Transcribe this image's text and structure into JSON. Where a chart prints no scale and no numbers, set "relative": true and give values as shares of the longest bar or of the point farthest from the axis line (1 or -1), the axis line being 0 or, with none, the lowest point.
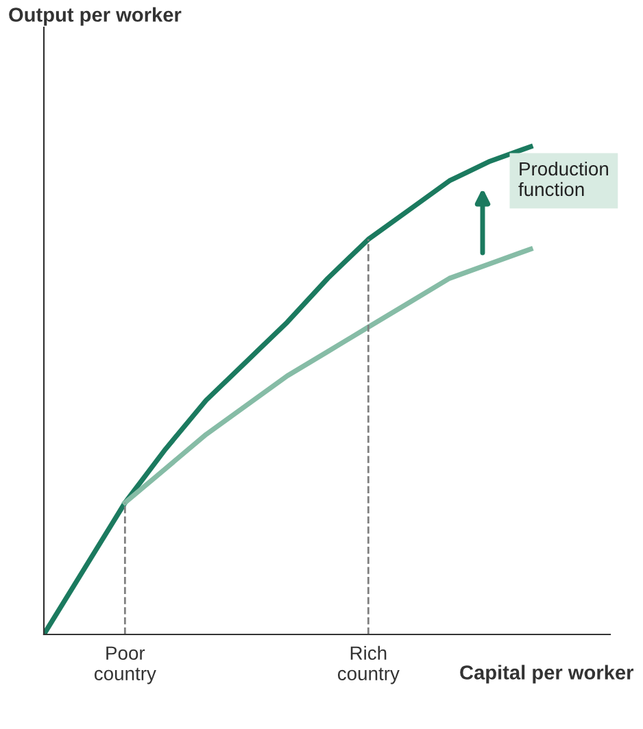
{
  "chart_data": {
    "type": "line",
    "relative": true,
    "xlabel": "Capital per worker",
    "categories": [
      null,
      null,
      "Poor\ncountry",
      null,
      null,
      null,
      null,
      null,
      "Rich\ncountry",
      null,
      null,
      null,
      null
    ],
    "tick_labels": "x",
    "grid": false,
    "marker": "none",
    "line_style": "solid",
    "series": [
      {
        "color": "#1b7a5f",
        "values": [
          0,
          0.135,
          0.27,
          0.38,
          0.48,
          0.56,
          0.64,
          0.73,
          0.81,
          0.87,
          0.93,
          0.97,
          1
        ]
      },
      {
        "color": "#86bca6",
        "values": [
          null,
          null,
          0.27,
          0.34,
          0.41,
          0.47,
          0.53,
          0.58,
          0.63,
          0.68,
          0.73,
          0.76,
          0.79
        ]
      }
    ],
    "ref_lines": [
      {
        "axis": "x",
        "value": "Poor\ncountry",
        "color": "#808080",
        "line_style": "dashed"
      },
      {
        "axis": "x",
        "value": "Rich\ncountry",
        "color": "#808080",
        "line_style": "dashed"
      }
    ],
    "annotations": [
      "Production\nfunction",
      "Output per worker"
    ]
  }
}
